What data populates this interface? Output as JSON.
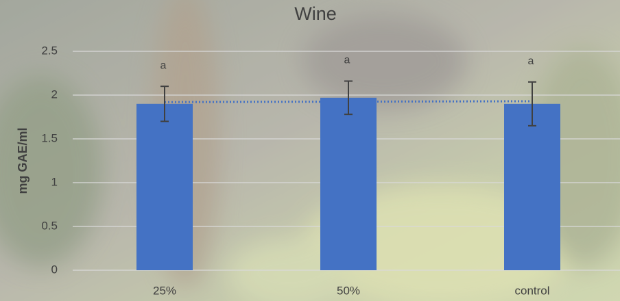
{
  "chart_data": {
    "type": "bar",
    "title": "Wine",
    "y_label": "mg GAE/ml",
    "categories": [
      "25%",
      "50%",
      "control"
    ],
    "values": [
      1.9,
      1.97,
      1.9
    ],
    "errors": [
      0.2,
      0.19,
      0.25
    ],
    "annotations": [
      "a",
      "a",
      "a"
    ],
    "color": "#4472c4",
    "trendline": {
      "values": [
        1.92,
        1.93
      ],
      "color": "#4472c4",
      "style": "dotted"
    },
    "ylim": [
      0,
      2.5
    ],
    "yticks": [
      0,
      0.5,
      1,
      1.5,
      2,
      2.5
    ],
    "grid": true
  }
}
